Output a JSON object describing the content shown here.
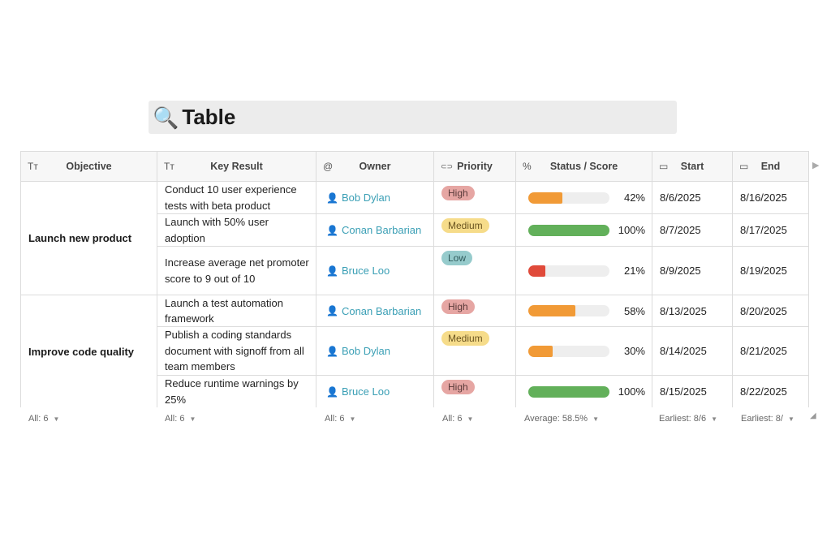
{
  "title": {
    "icon": "🔍",
    "text": "Table"
  },
  "columns": {
    "objective": {
      "icon": "Tт",
      "label": "Objective"
    },
    "key_result": {
      "icon": "Tт",
      "label": "Key Result"
    },
    "owner": {
      "icon": "@",
      "label": "Owner"
    },
    "priority": {
      "icon": "⊂⊃",
      "label": "Priority"
    },
    "status": {
      "icon": "%",
      "label": "Status / Score"
    },
    "start": {
      "icon": "▭",
      "label": "Start"
    },
    "end": {
      "icon": "▭",
      "label": "End"
    }
  },
  "groups": [
    {
      "objective": "Launch new product",
      "rows": [
        {
          "key_result": "Conduct 10 user experience tests with beta product",
          "owner": "Bob Dylan",
          "priority": "High",
          "progress": 0.42,
          "pct": "42%",
          "start": "8/6/2025",
          "end": "8/16/2025"
        },
        {
          "key_result": "Launch with 50% user adoption",
          "owner": "Conan Barbarian",
          "priority": "Medium",
          "progress": 1.0,
          "pct": "100%",
          "start": "8/7/2025",
          "end": "8/17/2025"
        },
        {
          "key_result": "Increase average net promoter score to 9 out of 10",
          "owner": "Bruce Loo",
          "priority": "Low",
          "progress": 0.21,
          "pct": "21%",
          "start": "8/9/2025",
          "end": "8/19/2025"
        }
      ]
    },
    {
      "objective": "Improve code quality",
      "rows": [
        {
          "key_result": "Launch a test automation framework",
          "owner": "Conan Barbarian",
          "priority": "High",
          "progress": 0.58,
          "pct": "58%",
          "start": "8/13/2025",
          "end": "8/20/2025"
        },
        {
          "key_result": "Publish a coding standards document with signoff from all team members",
          "owner": "Bob Dylan",
          "priority": "Medium",
          "progress": 0.3,
          "pct": "30%",
          "start": "8/14/2025",
          "end": "8/21/2025"
        },
        {
          "key_result": "Reduce runtime warnings by 25%",
          "owner": "Bruce Loo",
          "priority": "High",
          "progress": 1.0,
          "pct": "100%",
          "start": "8/15/2025",
          "end": "8/22/2025"
        }
      ]
    }
  ],
  "footer": {
    "objective": "All: 6",
    "key_result": "All: 6",
    "owner": "All: 6",
    "priority": "All: 6",
    "status": "Average: 58.5%",
    "start": "Earliest: 8/6",
    "end": "Earliest: 8/"
  },
  "colors": {
    "progress_green": "#62b05a",
    "progress_orange": "#f19a36",
    "progress_red": "#e04a3a",
    "owner_link": "#3a9fb5"
  }
}
